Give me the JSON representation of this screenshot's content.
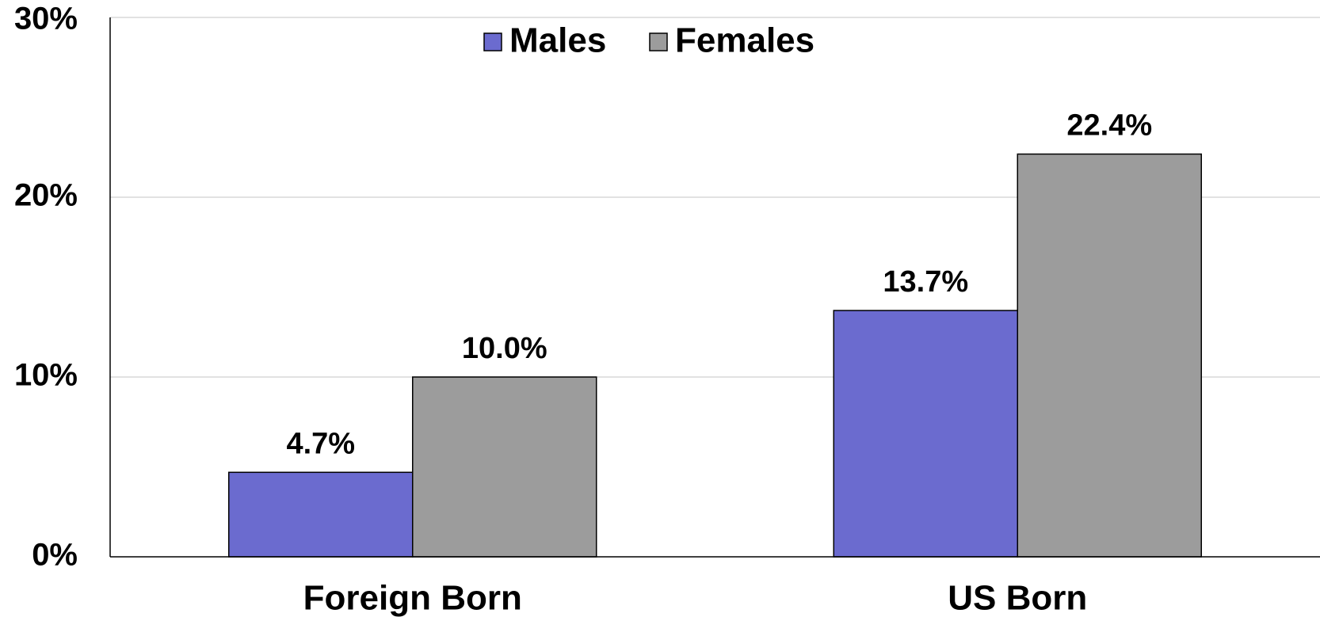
{
  "chart_data": {
    "type": "bar",
    "categories": [
      "Foreign Born",
      "US Born"
    ],
    "series": [
      {
        "name": "Males",
        "color": "#6b6bcf",
        "values": [
          4.7,
          13.7
        ],
        "value_labels": [
          "4.7%",
          "13.7%"
        ]
      },
      {
        "name": "Females",
        "color": "#9c9c9c",
        "values": [
          10.0,
          22.4
        ],
        "value_labels": [
          "10.0%",
          "22.4%"
        ]
      }
    ],
    "ylim": [
      0,
      30
    ],
    "yticks": [
      {
        "value": 0,
        "label": "0%"
      },
      {
        "value": 10,
        "label": "10%"
      },
      {
        "value": 20,
        "label": "20%"
      },
      {
        "value": 30,
        "label": "30%"
      }
    ],
    "grid": true,
    "legend": "top"
  }
}
